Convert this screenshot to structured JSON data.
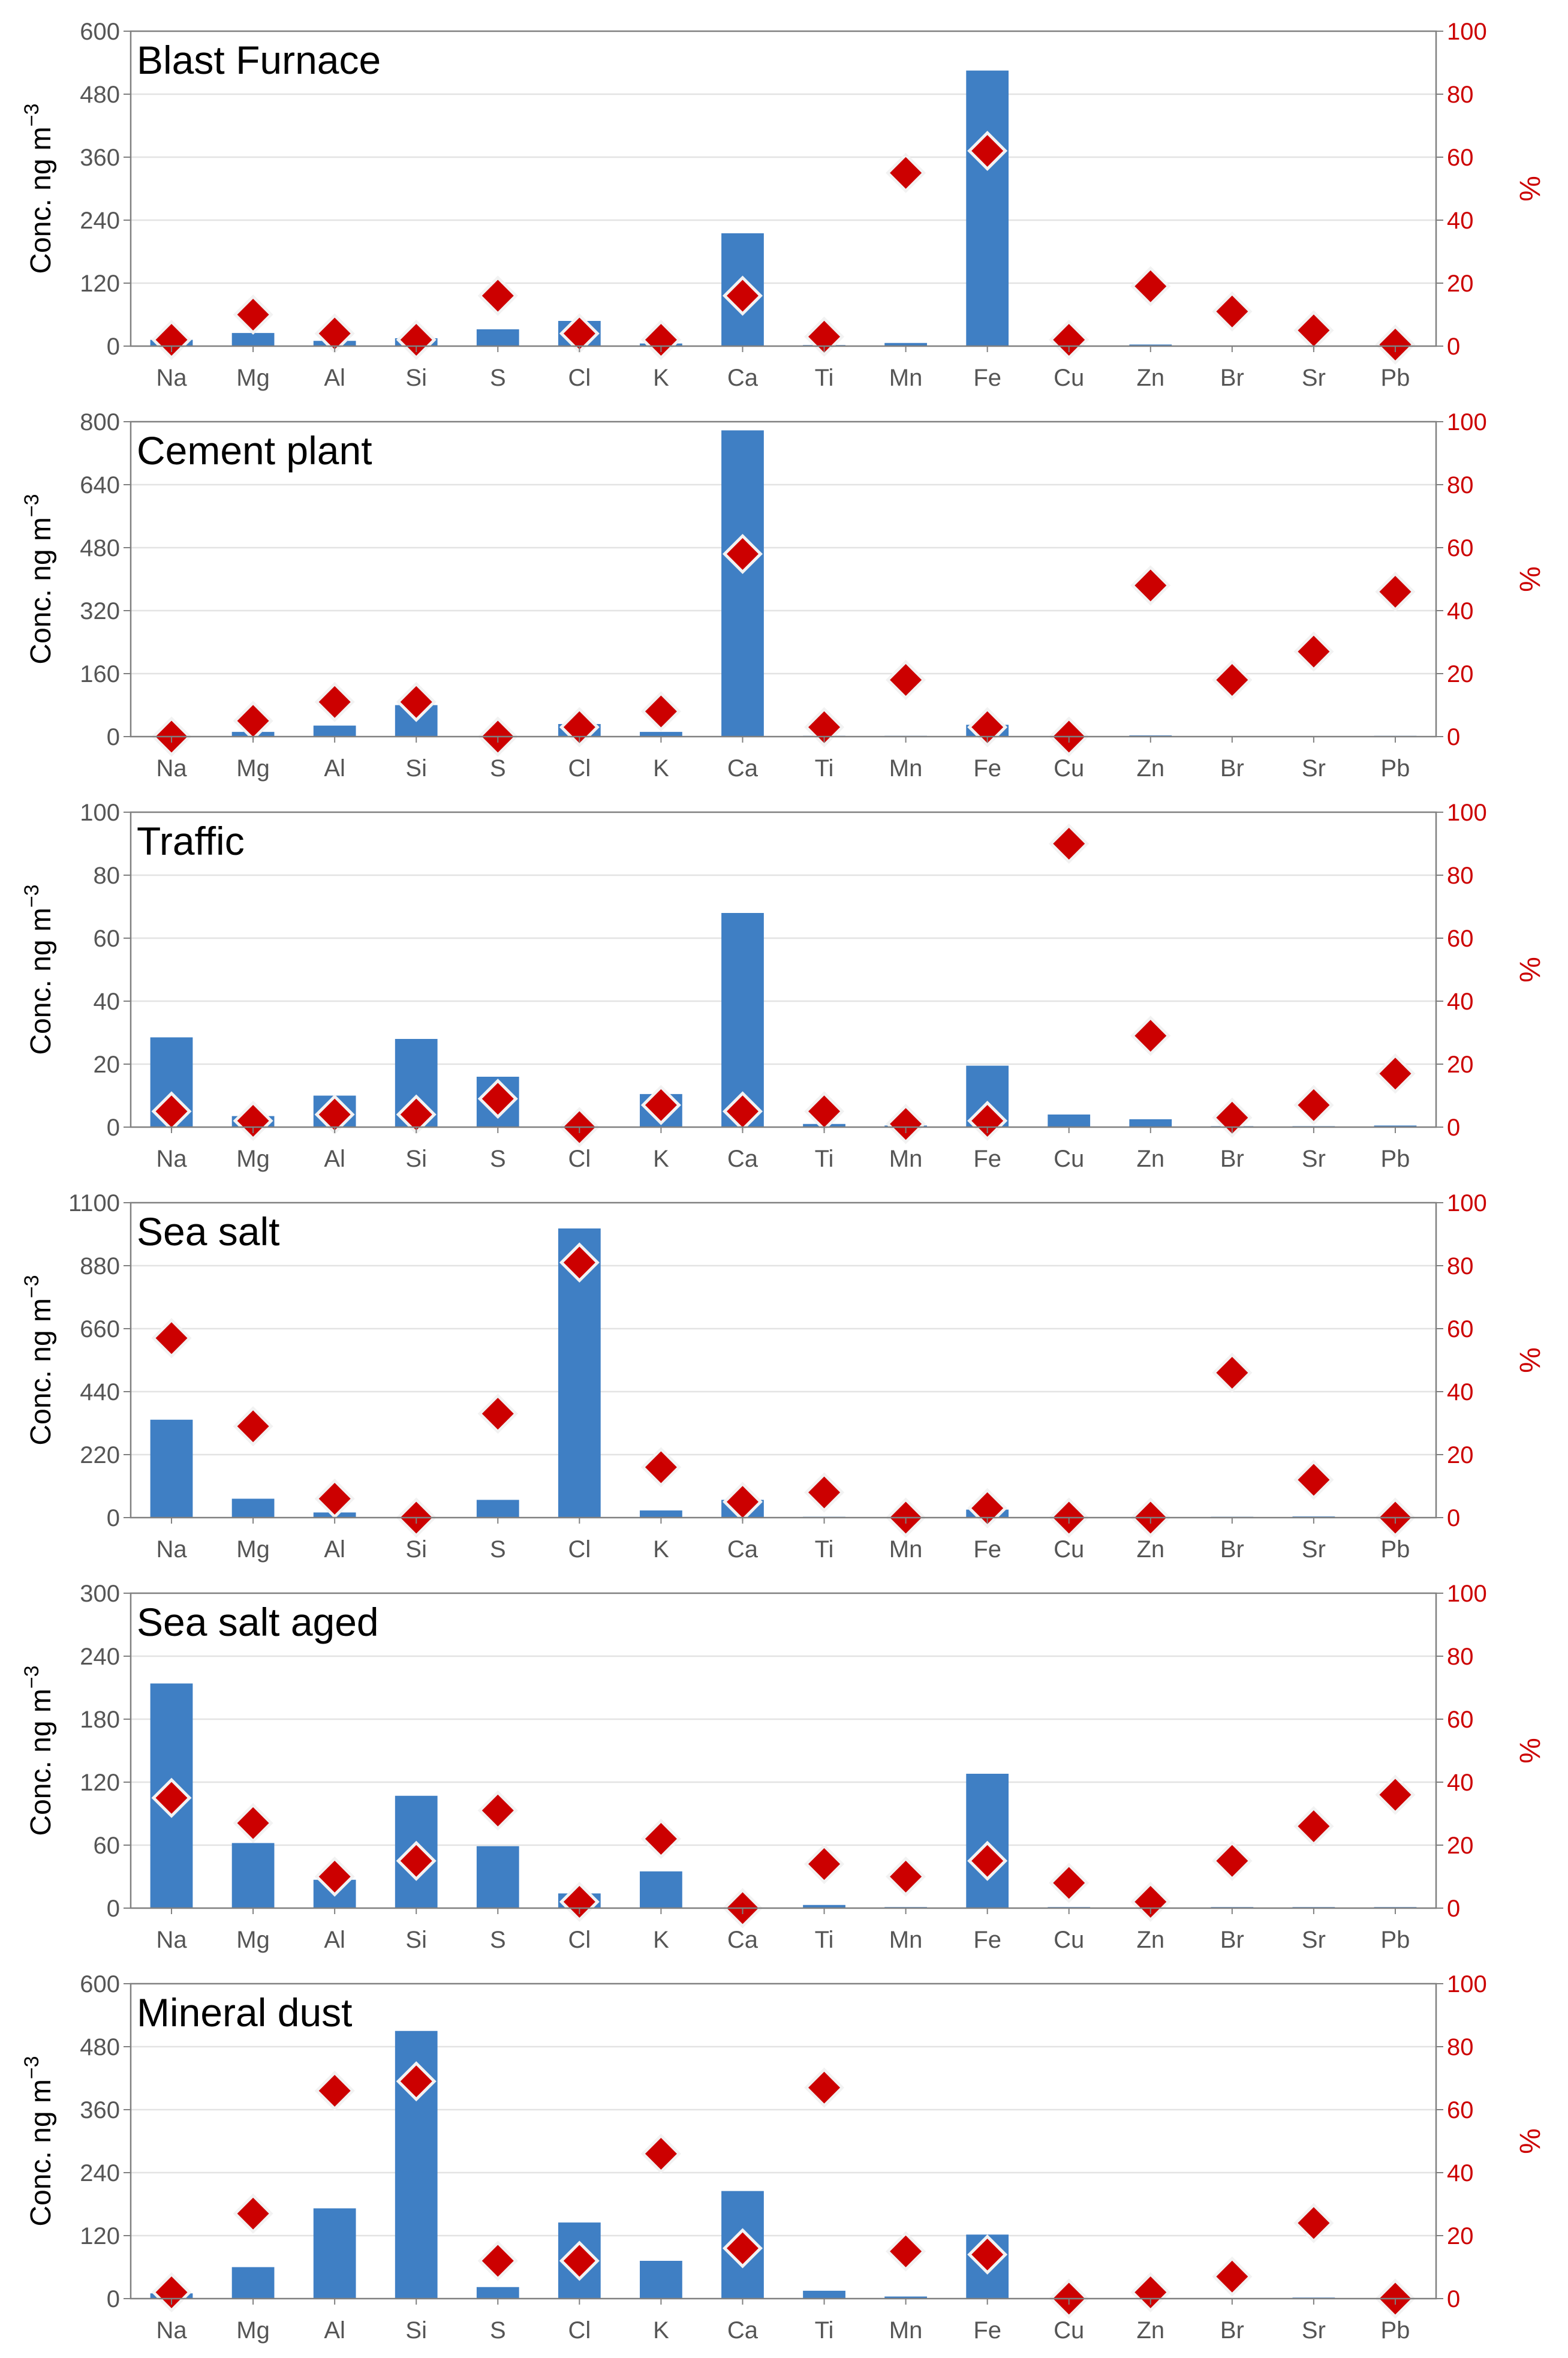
{
  "colors": {
    "bar": "#3f7fc4",
    "marker": "#cc0000",
    "marker_edge": "#f2f2f2",
    "right_axis": "#cc0000",
    "grid": "#e3e3e3",
    "frame": "#808080"
  },
  "chart_data": [
    {
      "type": "bar",
      "title": "Blast Furnace",
      "categories": [
        "Na",
        "Mg",
        "Al",
        "Si",
        "S",
        "Cl",
        "K",
        "Ca",
        "Ti",
        "Mn",
        "Fe",
        "Cu",
        "Zn",
        "Br",
        "Sr",
        "Pb"
      ],
      "ylabel": "Conc. ng m",
      "ylabel_sup": "−3",
      "y2label": "%",
      "ylim": [
        0,
        600
      ],
      "yticks": [
        "0",
        "120",
        "240",
        "360",
        "480",
        "600"
      ],
      "y2lim": [
        0,
        100
      ],
      "y2ticks": [
        "0",
        "20",
        "40",
        "60",
        "80",
        "100"
      ],
      "series": [
        {
          "name": "Conc. ng m−3",
          "axis": "left",
          "kind": "bar",
          "values": [
            12,
            25,
            10,
            15,
            32,
            48,
            5,
            215,
            2,
            6,
            525,
            1,
            3,
            1,
            1,
            0.5
          ]
        },
        {
          "name": "%",
          "axis": "right",
          "kind": "marker",
          "values": [
            2,
            10,
            4,
            2,
            16,
            4,
            2,
            16,
            3,
            55,
            62,
            2,
            19,
            11,
            5,
            0.5
          ]
        }
      ]
    },
    {
      "type": "bar",
      "title": "Cement plant",
      "categories": [
        "Na",
        "Mg",
        "Al",
        "Si",
        "S",
        "Cl",
        "K",
        "Ca",
        "Ti",
        "Mn",
        "Fe",
        "Cu",
        "Zn",
        "Br",
        "Sr",
        "Pb"
      ],
      "ylabel": "Conc. ng m",
      "ylabel_sup": "−3",
      "y2label": "%",
      "ylim": [
        0,
        800
      ],
      "yticks": [
        "0",
        "160",
        "320",
        "480",
        "640",
        "800"
      ],
      "y2lim": [
        0,
        100
      ],
      "y2ticks": [
        "0",
        "20",
        "40",
        "60",
        "80",
        "100"
      ],
      "series": [
        {
          "name": "Conc. ng m−3",
          "axis": "left",
          "kind": "bar",
          "values": [
            0,
            12,
            28,
            80,
            0,
            32,
            12,
            778,
            2,
            2,
            30,
            0.5,
            3,
            0.5,
            1,
            2
          ]
        },
        {
          "name": "%",
          "axis": "right",
          "kind": "marker",
          "values": [
            0,
            5,
            11,
            11,
            0,
            3,
            8,
            58,
            3,
            18,
            3,
            0,
            48,
            18,
            27,
            46
          ]
        }
      ]
    },
    {
      "type": "bar",
      "title": "Traffic",
      "categories": [
        "Na",
        "Mg",
        "Al",
        "Si",
        "S",
        "Cl",
        "K",
        "Ca",
        "Ti",
        "Mn",
        "Fe",
        "Cu",
        "Zn",
        "Br",
        "Sr",
        "Pb"
      ],
      "ylabel": "Conc. ng m",
      "ylabel_sup": "−3",
      "y2label": "%",
      "ylim": [
        0,
        100
      ],
      "yticks": [
        "0",
        "20",
        "40",
        "60",
        "80",
        "100"
      ],
      "y2lim": [
        0,
        100
      ],
      "y2ticks": [
        "0",
        "20",
        "40",
        "60",
        "80",
        "100"
      ],
      "series": [
        {
          "name": "Conc. ng m−3",
          "axis": "left",
          "kind": "bar",
          "values": [
            28.5,
            3.5,
            10,
            28,
            16,
            0,
            10.5,
            68,
            1,
            0.5,
            19.5,
            4,
            2.5,
            0.3,
            0.3,
            0.5
          ]
        },
        {
          "name": "%",
          "axis": "right",
          "kind": "marker",
          "values": [
            5,
            2,
            4,
            4,
            9,
            0,
            7,
            5,
            5,
            1,
            2,
            90,
            29,
            3,
            7,
            17
          ]
        }
      ]
    },
    {
      "type": "bar",
      "title": "Sea salt",
      "categories": [
        "Na",
        "Mg",
        "Al",
        "Si",
        "S",
        "Cl",
        "K",
        "Ca",
        "Ti",
        "Mn",
        "Fe",
        "Cu",
        "Zn",
        "Br",
        "Sr",
        "Pb"
      ],
      "ylabel": "Conc. ng m",
      "ylabel_sup": "−3",
      "y2label": "%",
      "ylim": [
        0,
        1100
      ],
      "yticks": [
        "0",
        "220",
        "440",
        "660",
        "880",
        "1100"
      ],
      "y2lim": [
        0,
        100
      ],
      "y2ticks": [
        "0",
        "20",
        "40",
        "60",
        "80",
        "100"
      ],
      "series": [
        {
          "name": "Conc. ng m−3",
          "axis": "left",
          "kind": "bar",
          "values": [
            342,
            66,
            18,
            1,
            62,
            1010,
            25,
            62,
            3,
            0.5,
            28,
            1,
            1,
            3,
            4,
            0.5
          ]
        },
        {
          "name": "%",
          "axis": "right",
          "kind": "marker",
          "values": [
            57,
            29,
            6,
            0,
            33,
            81,
            16,
            5,
            8,
            0,
            3,
            0,
            0,
            46,
            12,
            0
          ]
        }
      ]
    },
    {
      "type": "bar",
      "title": "Sea salt aged",
      "categories": [
        "Na",
        "Mg",
        "Al",
        "Si",
        "S",
        "Cl",
        "K",
        "Ca",
        "Ti",
        "Mn",
        "Fe",
        "Cu",
        "Zn",
        "Br",
        "Sr",
        "Pb"
      ],
      "ylabel": "Conc. ng m",
      "ylabel_sup": "−3",
      "y2label": "%",
      "ylim": [
        0,
        300
      ],
      "yticks": [
        "0",
        "60",
        "120",
        "180",
        "240",
        "300"
      ],
      "y2lim": [
        0,
        100
      ],
      "y2ticks": [
        "0",
        "20",
        "40",
        "60",
        "80",
        "100"
      ],
      "series": [
        {
          "name": "Conc. ng m−3",
          "axis": "left",
          "kind": "bar",
          "values": [
            214,
            62,
            27,
            107,
            59,
            14,
            35,
            0.5,
            3,
            1,
            128,
            1,
            0.5,
            1,
            1,
            1
          ]
        },
        {
          "name": "%",
          "axis": "right",
          "kind": "marker",
          "values": [
            35,
            27,
            10,
            15,
            31,
            2,
            22,
            0,
            14,
            10,
            15,
            8,
            2,
            15,
            26,
            36
          ]
        }
      ]
    },
    {
      "type": "bar",
      "title": "Mineral dust",
      "categories": [
        "Na",
        "Mg",
        "Al",
        "Si",
        "S",
        "Cl",
        "K",
        "Ca",
        "Ti",
        "Mn",
        "Fe",
        "Cu",
        "Zn",
        "Br",
        "Sr",
        "Pb"
      ],
      "ylabel": "Conc. ng m",
      "ylabel_sup": "−3",
      "y2label": "%",
      "ylim": [
        0,
        600
      ],
      "yticks": [
        "0",
        "120",
        "240",
        "360",
        "480",
        "600"
      ],
      "y2lim": [
        0,
        100
      ],
      "y2ticks": [
        "0",
        "20",
        "40",
        "60",
        "80",
        "100"
      ],
      "series": [
        {
          "name": "Conc. ng m−3",
          "axis": "left",
          "kind": "bar",
          "values": [
            10,
            60,
            172,
            510,
            22,
            145,
            72,
            205,
            15,
            4,
            122,
            0.5,
            0.5,
            0.5,
            2,
            0.5
          ]
        },
        {
          "name": "%",
          "axis": "right",
          "kind": "marker",
          "values": [
            2,
            27,
            66,
            69,
            12,
            12,
            46,
            16,
            67,
            15,
            14,
            0,
            2,
            7,
            24,
            0
          ]
        }
      ]
    }
  ]
}
